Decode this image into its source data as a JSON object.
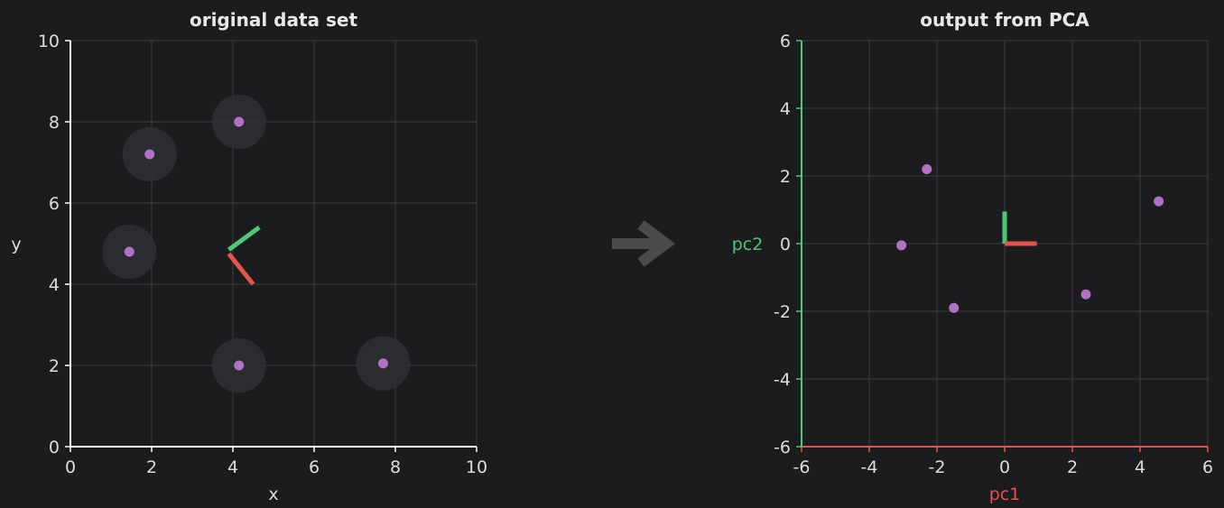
{
  "chart_data": [
    {
      "type": "scatter",
      "title": "original data set",
      "xlabel": "x",
      "ylabel": "y",
      "xlim": [
        0,
        10
      ],
      "ylim": [
        0,
        10
      ],
      "xticks": [
        0,
        2,
        4,
        6,
        8,
        10
      ],
      "yticks": [
        0,
        2,
        4,
        6,
        8,
        10
      ],
      "grid": true,
      "point_color": "#b370c7",
      "halo_color": "#2e2f31",
      "axis_color": "#ffffff",
      "xlabel_color": "#dcdcdc",
      "ylabel_color": "#dcdcdc",
      "points": [
        {
          "x": 1.45,
          "y": 4.8
        },
        {
          "x": 1.95,
          "y": 7.2
        },
        {
          "x": 4.15,
          "y": 8.0
        },
        {
          "x": 4.15,
          "y": 2.0
        },
        {
          "x": 7.7,
          "y": 2.05
        }
      ],
      "vectors": [
        {
          "x1": 3.9,
          "y1": 4.85,
          "x2": 4.65,
          "y2": 5.4,
          "color": "#4ec776"
        },
        {
          "x1": 3.9,
          "y1": 4.75,
          "x2": 4.5,
          "y2": 4.0,
          "color": "#e5534b"
        }
      ]
    },
    {
      "type": "scatter",
      "title": "output from PCA",
      "xlabel": "pc1",
      "ylabel": "pc2",
      "xlim": [
        -6,
        6
      ],
      "ylim": [
        -6,
        6
      ],
      "xticks": [
        -6,
        -4,
        -2,
        0,
        2,
        4,
        6
      ],
      "yticks": [
        -6,
        -4,
        -2,
        0,
        2,
        4,
        6
      ],
      "grid": true,
      "point_color": "#b370c7",
      "x_axis_color": "#e5534b",
      "y_axis_color": "#4ec776",
      "xlabel_color": "#e5534b",
      "ylabel_color": "#4ec776",
      "points": [
        {
          "x": -3.05,
          "y": -0.05
        },
        {
          "x": -2.3,
          "y": 2.2
        },
        {
          "x": -1.5,
          "y": -1.9
        },
        {
          "x": 2.4,
          "y": -1.5
        },
        {
          "x": 4.55,
          "y": 1.25
        }
      ],
      "vectors": [
        {
          "x1": 0,
          "y1": 0,
          "x2": 0,
          "y2": 0.95,
          "color": "#4ec776"
        },
        {
          "x1": 0,
          "y1": 0,
          "x2": 0.95,
          "y2": 0,
          "color": "#e5534b"
        }
      ]
    }
  ],
  "arrow": {
    "icon": "arrow-right-icon",
    "color": "#4a4b4d"
  }
}
